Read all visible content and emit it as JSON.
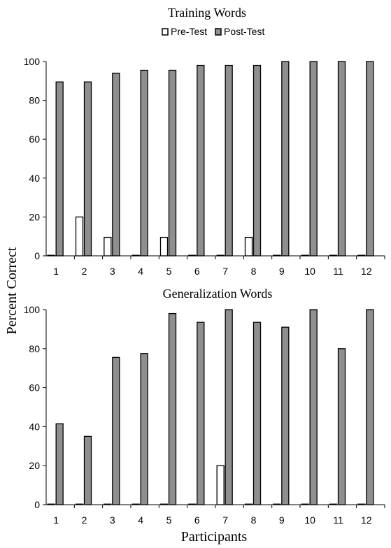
{
  "shared": {
    "ylabel": "Percent Correct",
    "xlabel": "Participants",
    "legend": [
      {
        "label": "Pre-Test",
        "color": "#ffffff"
      },
      {
        "label": "Post-Test",
        "color": "#8f8f8f"
      }
    ]
  },
  "chart_data": [
    {
      "type": "bar",
      "title": "Training Words",
      "categories": [
        "1",
        "2",
        "3",
        "4",
        "5",
        "6",
        "7",
        "8",
        "9",
        "10",
        "11",
        "12"
      ],
      "ylim": [
        0,
        100
      ],
      "yticks": [
        "0",
        "20",
        "40",
        "60",
        "80",
        "100"
      ],
      "series": [
        {
          "name": "Pre-Test",
          "values": [
            0,
            20,
            9.5,
            0,
            9.5,
            0,
            0,
            9.5,
            0,
            0,
            0,
            0
          ]
        },
        {
          "name": "Post-Test",
          "values": [
            89.5,
            89.5,
            94,
            95.5,
            95.5,
            98,
            98,
            98,
            100,
            100,
            100,
            100
          ]
        }
      ]
    },
    {
      "type": "bar",
      "title": "Generalization Words",
      "categories": [
        "1",
        "2",
        "3",
        "4",
        "5",
        "6",
        "7",
        "8",
        "9",
        "10",
        "11",
        "12"
      ],
      "ylim": [
        0,
        100
      ],
      "yticks": [
        "0",
        "20",
        "40",
        "60",
        "80",
        "100"
      ],
      "series": [
        {
          "name": "Pre-Test",
          "values": [
            0,
            0,
            0,
            0,
            0,
            0,
            20,
            0,
            0,
            0,
            0,
            0
          ]
        },
        {
          "name": "Post-Test",
          "values": [
            41.5,
            35,
            75.5,
            77.5,
            98,
            93.5,
            100,
            93.5,
            91,
            100,
            80,
            100
          ]
        }
      ]
    }
  ]
}
